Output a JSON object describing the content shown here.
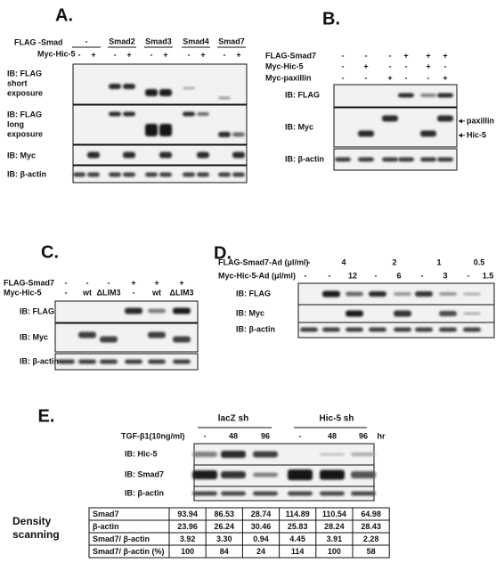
{
  "panel_a": {
    "label": "A.",
    "row_labels": [
      "FLAG -Smad",
      "Myc-Hic-5"
    ],
    "groups": [
      "-",
      "Smad2",
      "Smad3",
      "Smad4",
      "Smad7"
    ],
    "myc_signs": [
      "-",
      "+",
      "-",
      "+",
      "-",
      "+",
      "-",
      "+",
      "-",
      "+"
    ],
    "blots": [
      [
        "IB: FLAG",
        "short",
        "exposure"
      ],
      [
        "IB: FLAG",
        "long",
        "exposure"
      ],
      [
        "IB: Myc"
      ],
      [
        "IB: β-actin"
      ]
    ]
  },
  "panel_b": {
    "label": "B.",
    "row_labels": [
      "FLAG-Smad7",
      "Myc-Hic-5",
      "Myc-paxillin"
    ],
    "signs": [
      [
        "-",
        "-",
        "-",
        "+",
        "+",
        "+"
      ],
      [
        "-",
        "+",
        "-",
        "-",
        "+",
        "-"
      ],
      [
        "-",
        "-",
        "+",
        "-",
        "-",
        "+"
      ]
    ],
    "blots": [
      "IB: FLAG",
      "IB: Myc",
      "IB: β-actin"
    ],
    "annotations": [
      "paxillin",
      "Hic-5"
    ]
  },
  "panel_c": {
    "label": "C.",
    "row_labels": [
      "FLAG-Smad7",
      "Myc-Hic-5"
    ],
    "signs": [
      [
        "-",
        "-",
        "-",
        "+",
        "+",
        "+"
      ],
      [
        "-",
        "wt",
        "ΔLIM3",
        "-",
        "wt",
        "ΔLIM3"
      ]
    ],
    "blots": [
      "IB: FLAG",
      "IB: Myc",
      "IB: β-actin"
    ]
  },
  "panel_d": {
    "label": "D.",
    "row_labels": [
      "FLAG-Smad7-Ad (μl/ml)",
      "Myc-Hic-5-Ad (μl/ml)"
    ],
    "doses": [
      [
        "-",
        "4",
        "2",
        "1",
        "0.5"
      ],
      [
        "-",
        "-",
        "12",
        "-",
        "6",
        "-",
        "3",
        "-",
        "1.5"
      ]
    ],
    "blots": [
      "IB: FLAG",
      "IB: Myc",
      "IB: β-actin"
    ]
  },
  "panel_e": {
    "label": "E.",
    "groups": [
      "lacZ sh",
      "Hic-5 sh"
    ],
    "row_label": "TGF-β1(10ng/ml)",
    "times": [
      "-",
      "48",
      "96",
      "-",
      "48",
      "96"
    ],
    "unit": "hr",
    "blots": [
      "IB: Hic-5",
      "IB: Smad7",
      "IB: β-actin"
    ],
    "side_label": [
      "Density",
      "scanning"
    ],
    "table": {
      "rows": [
        [
          "Smad7",
          "93.94",
          "86.53",
          "28.74",
          "114.89",
          "110.54",
          "64.98"
        ],
        [
          "β-actin",
          "23.96",
          "26.24",
          "30.46",
          "25.83",
          "28.24",
          "28.43"
        ],
        [
          "Smad7/ β-actin",
          "3.92",
          "3.30",
          "0.94",
          "4.45",
          "3.91",
          "2.28"
        ],
        [
          "Smad7/ β-actin (%)",
          "100",
          "84",
          "24",
          "114",
          "100",
          "58"
        ]
      ]
    }
  }
}
